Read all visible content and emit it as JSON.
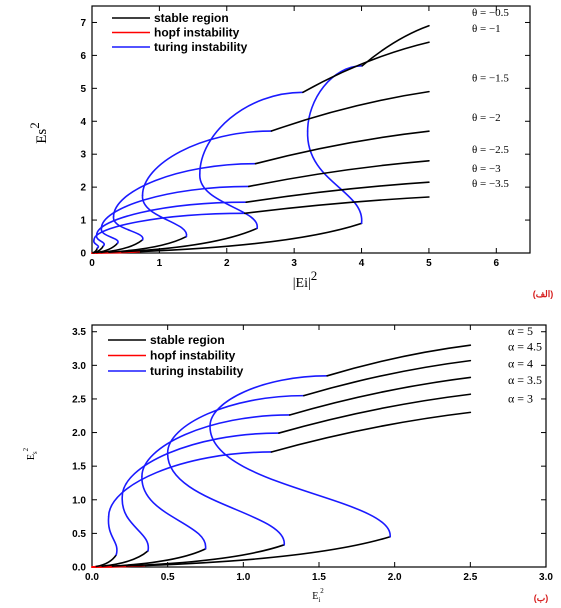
{
  "chart_data": [
    {
      "type": "line",
      "panel_label": "(الف)",
      "xlabel": "|Ei|",
      "xlabel_exp": "2",
      "ylabel": "Es",
      "ylabel_exp": "2",
      "xlim": [
        0,
        6.5
      ],
      "ylim": [
        0,
        7.5
      ],
      "xticks": [
        "0",
        "1",
        "2",
        "3",
        "4",
        "5",
        "6"
      ],
      "yticks": [
        "0",
        "1",
        "2",
        "3",
        "4",
        "5",
        "6",
        "7"
      ],
      "legend": [
        "stable region",
        "hopf instability",
        "turing instability"
      ],
      "legend_placement": "top-left",
      "grid": false,
      "colors": {
        "stable": "#000000",
        "hopf": "#ff0000",
        "turing": "#1a1aff"
      },
      "series": [
        {
          "name": "θ = −0.5",
          "y_end": 6.9,
          "turn_upper": [
            3.2,
            3.7
          ],
          "turn_lower": [
            4.0,
            0.9
          ]
        },
        {
          "name": "θ = −1",
          "y_end": 6.4,
          "turn_upper": [
            1.6,
            2.4
          ],
          "turn_lower": [
            2.45,
            0.75
          ]
        },
        {
          "name": "θ = −1.5",
          "y_end": 4.9,
          "turn_upper": [
            0.75,
            1.75
          ],
          "turn_lower": [
            1.4,
            0.5
          ]
        },
        {
          "name": "θ = −2",
          "y_end": 3.7,
          "turn_upper": [
            0.32,
            1.1
          ],
          "turn_lower": [
            0.75,
            0.4
          ]
        },
        {
          "name": "θ = −2.5",
          "y_end": 2.8,
          "turn_upper": [
            0.14,
            0.75
          ],
          "turn_lower": [
            0.38,
            0.3
          ]
        },
        {
          "name": "θ = −3",
          "y_end": 2.15,
          "turn_upper": [
            0.07,
            0.55
          ],
          "turn_lower": [
            0.17,
            0.22
          ]
        },
        {
          "name": "θ = −3.5",
          "y_end": 1.7,
          "turn_upper": [
            0.03,
            0.4
          ],
          "turn_lower": [
            0.08,
            0.15
          ]
        }
      ]
    },
    {
      "type": "line",
      "panel_label": "(ب)",
      "xlabel": "E",
      "xlabel_sub": "i",
      "xlabel_exp": "2",
      "ylabel": "E",
      "ylabel_sub": "s",
      "ylabel_exp": "2",
      "xlim": [
        0,
        3.0
      ],
      "ylim": [
        0,
        3.6
      ],
      "xticks": [
        "0.0",
        "0.5",
        "1.0",
        "1.5",
        "2.0",
        "2.5",
        "3.0"
      ],
      "yticks": [
        "0.0",
        "0.5",
        "1.0",
        "1.5",
        "2.0",
        "2.5",
        "3.0",
        "3.5"
      ],
      "legend": [
        "stable region",
        "hopf instability",
        "turing instability"
      ],
      "legend_placement": "top-left",
      "grid": false,
      "colors": {
        "stable": "#000000",
        "hopf": "#ff0000",
        "turing": "#1a1aff"
      },
      "series": [
        {
          "name": "α = 5",
          "y_end": 3.3,
          "turn_upper": [
            0.78,
            2.1
          ],
          "turn_lower": [
            1.97,
            0.45
          ]
        },
        {
          "name": "α = 4.5",
          "y_end": 3.07,
          "turn_upper": [
            0.5,
            1.7
          ],
          "turn_lower": [
            1.27,
            0.33
          ]
        },
        {
          "name": "α = 4",
          "y_end": 2.82,
          "turn_upper": [
            0.33,
            1.35
          ],
          "turn_lower": [
            0.75,
            0.27
          ]
        },
        {
          "name": "α = 3.5",
          "y_end": 2.57,
          "turn_upper": [
            0.2,
            1.05
          ],
          "turn_lower": [
            0.37,
            0.24
          ]
        },
        {
          "name": "α = 3",
          "y_end": 2.3,
          "turn_upper": [
            0.11,
            0.75
          ],
          "turn_lower": [
            0.16,
            0.18
          ]
        }
      ]
    }
  ]
}
